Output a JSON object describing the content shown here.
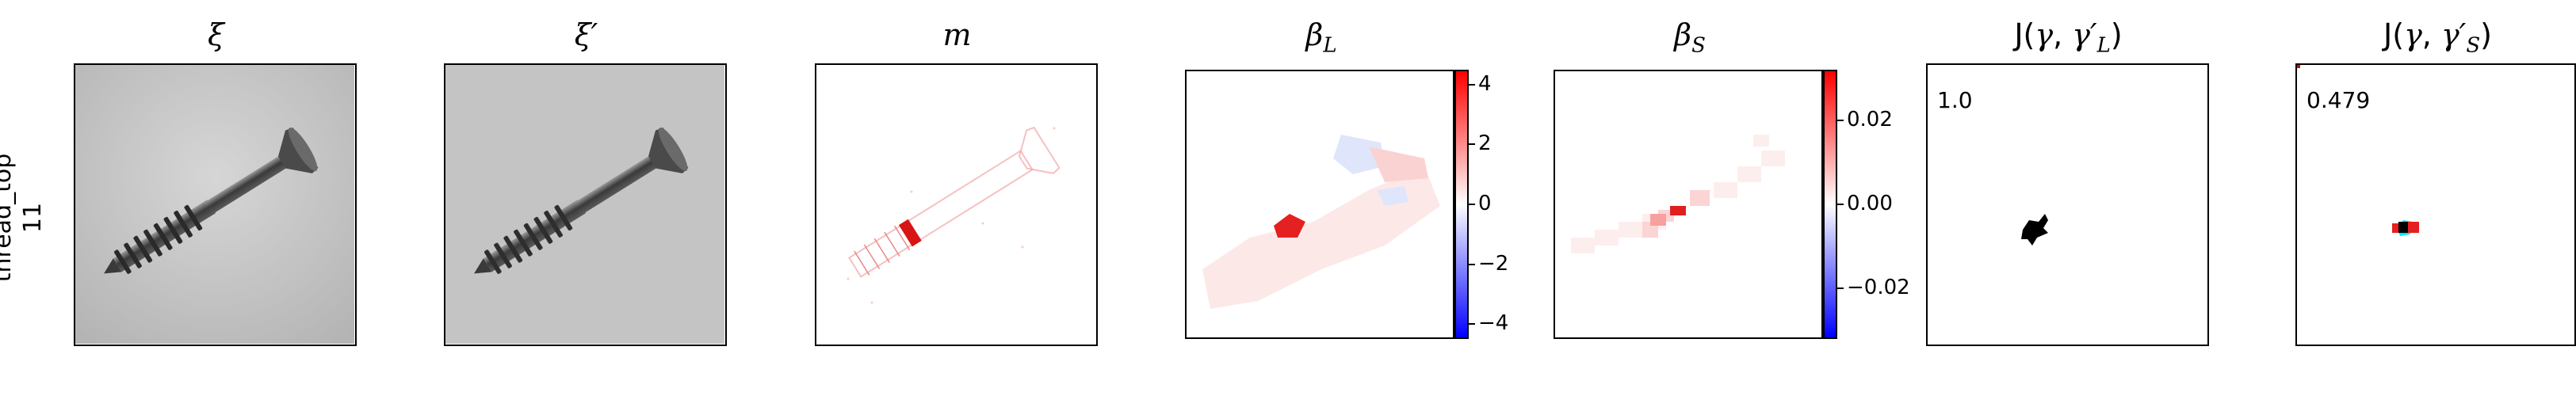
{
  "row_label": {
    "line1": "thread_top",
    "line2": "11"
  },
  "panels": [
    {
      "id": "xi",
      "title": "ξ"
    },
    {
      "id": "xi-prime",
      "title": "ξ′"
    },
    {
      "id": "m",
      "title": "m"
    },
    {
      "id": "beta-l",
      "title_base": "β",
      "title_sub": "L",
      "colorbar": {
        "ticks": [
          "4",
          "2",
          "0",
          "−2",
          "−4"
        ],
        "values": [
          4,
          2,
          0,
          -2,
          -4
        ],
        "range": [
          -4.5,
          4.5
        ]
      }
    },
    {
      "id": "beta-s",
      "title_base": "β",
      "title_sub": "S",
      "colorbar": {
        "ticks": [
          "0.02",
          "0.00",
          "−0.02"
        ],
        "values": [
          0.02,
          0.0,
          -0.02
        ],
        "range": [
          -0.032,
          0.032
        ]
      }
    },
    {
      "id": "j-l",
      "title_prefix": "J(",
      "title_gamma": "γ",
      "title_sep": ", ",
      "title_gamma2": "γ′",
      "title_sub": "L",
      "title_suffix": ")",
      "score": "1.0"
    },
    {
      "id": "j-s",
      "title_prefix": "J(",
      "title_gamma": "γ",
      "title_sep": ", ",
      "title_gamma2": "γ′",
      "title_sub": "S",
      "title_suffix": ")",
      "score": "0.479"
    }
  ],
  "colors": {
    "positive": "#ff0000",
    "negative": "#0000ff",
    "neutral": "#ffffff",
    "overlay_cyan": "#00e5ff"
  }
}
